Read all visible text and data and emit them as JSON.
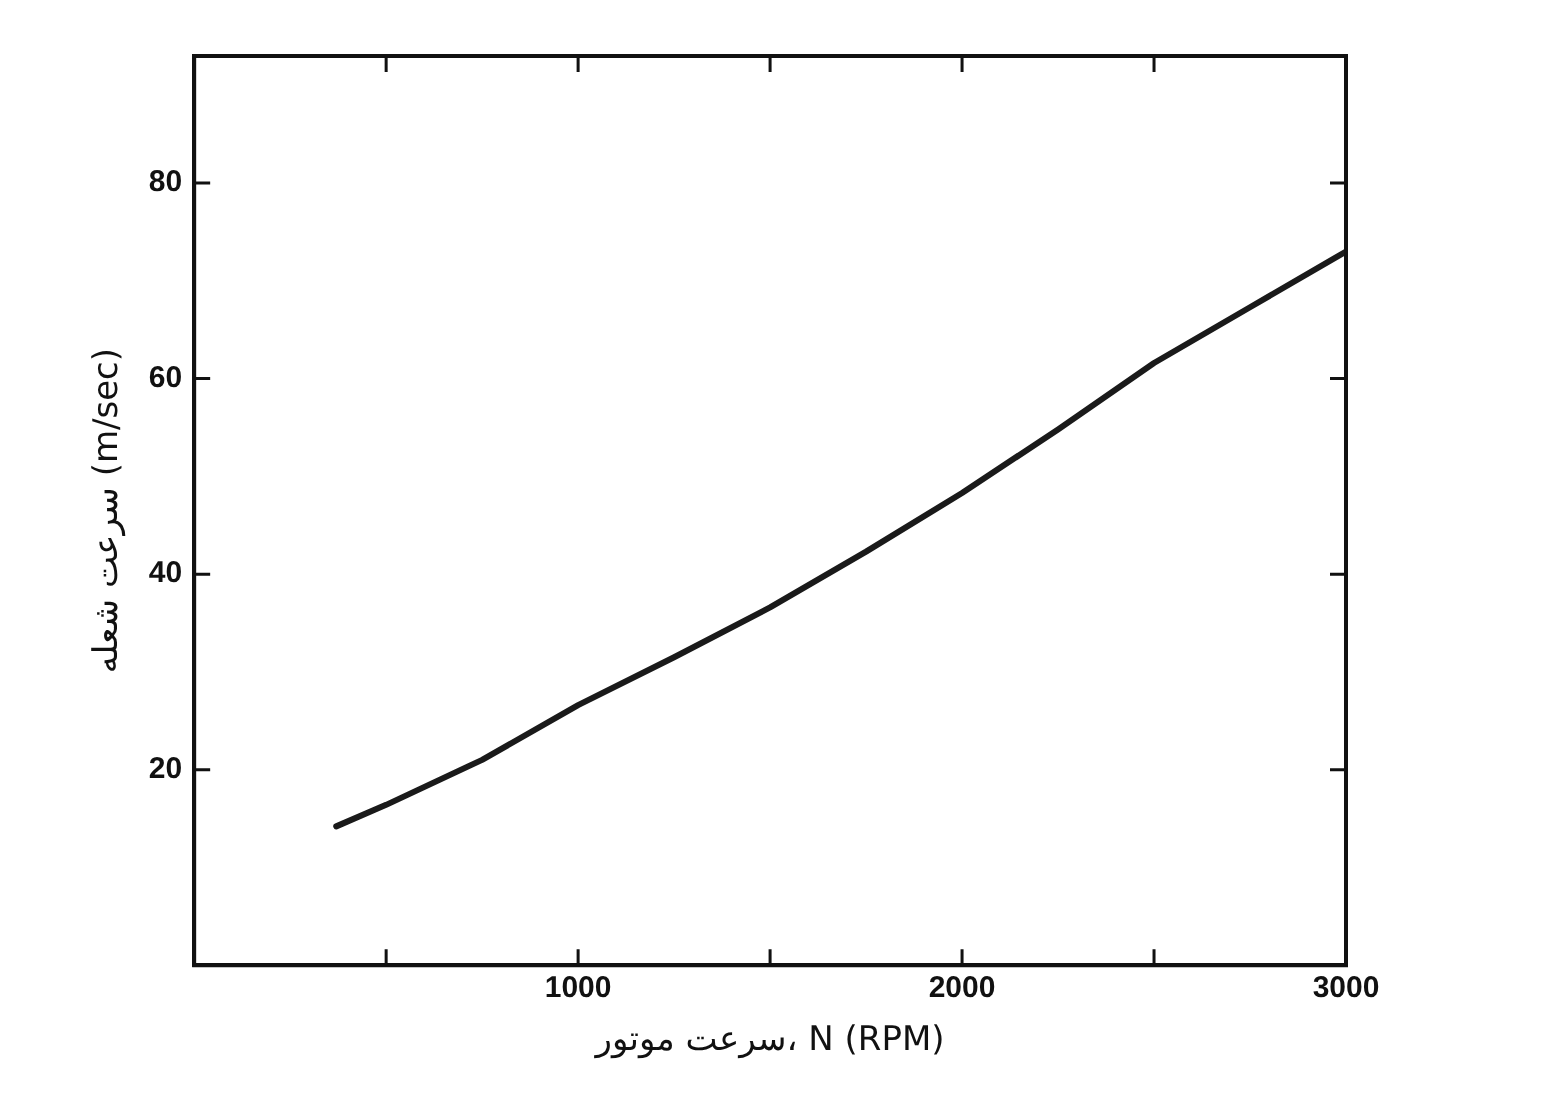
{
  "chart_data": {
    "type": "line",
    "xlabel": "سرعت موتور، N (RPM)",
    "ylabel": "سرعت شعله (m/sec)",
    "x": [
      370,
      500,
      750,
      1000,
      1250,
      1500,
      1750,
      2000,
      2250,
      2500,
      2750,
      3000
    ],
    "series": [
      {
        "color": "#1a1a1a",
        "values": [
          14.2,
          16.4,
          21,
          26.6,
          31.5,
          36.6,
          42.3,
          48.3,
          54.8,
          61.6,
          67.3,
          73
        ]
      }
    ],
    "xlim": [
      0,
      3000
    ],
    "xticks": [
      {
        "value": 500,
        "label": null
      },
      1000,
      {
        "value": 1500,
        "label": null
      },
      2000,
      {
        "value": 2500,
        "label": null
      },
      3000
    ],
    "ylim": [
      0,
      93
    ],
    "yticks": [
      20,
      40,
      60,
      80
    ],
    "grid": false,
    "legend": false,
    "marker": "none",
    "line_style": "solid"
  }
}
